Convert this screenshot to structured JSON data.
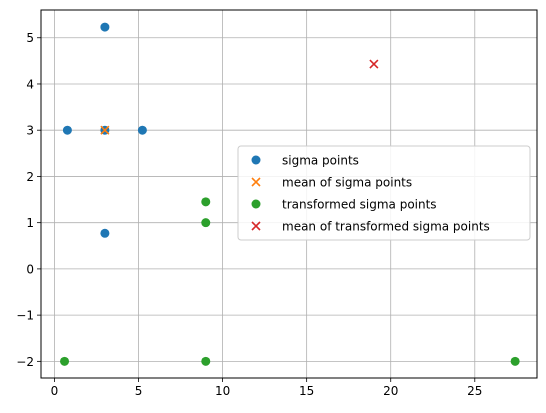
{
  "chart_data": {
    "type": "scatter",
    "xlim": [
      -0.8,
      28.7
    ],
    "ylim": [
      -2.36,
      5.6
    ],
    "xticks": [
      0,
      5,
      10,
      15,
      20,
      25
    ],
    "yticks": [
      -2,
      -1,
      0,
      1,
      2,
      3,
      4,
      5
    ],
    "xtick_labels": [
      "0",
      "5",
      "10",
      "15",
      "20",
      "25"
    ],
    "ytick_labels": [
      "−2",
      "−1",
      "0",
      "1",
      "2",
      "3",
      "4",
      "5"
    ],
    "grid": true,
    "legend_position": "center-right",
    "series": [
      {
        "name": "sigma points",
        "marker": "circle",
        "color": "#1f77b4",
        "points": [
          [
            3.0,
            3.0
          ],
          [
            0.77,
            3.0
          ],
          [
            5.23,
            3.0
          ],
          [
            3.0,
            0.77
          ],
          [
            3.0,
            5.23
          ]
        ]
      },
      {
        "name": "mean of sigma points",
        "marker": "x",
        "color": "#ff7f0e",
        "points": [
          [
            3.0,
            3.0
          ]
        ]
      },
      {
        "name": "transformed sigma points",
        "marker": "circle",
        "color": "#2ca02c",
        "points": [
          [
            9.0,
            1.0
          ],
          [
            0.6,
            -2.0
          ],
          [
            9.0,
            -2.0
          ],
          [
            9.0,
            1.45
          ],
          [
            27.4,
            -2.0
          ]
        ]
      },
      {
        "name": "mean of transformed sigma points",
        "marker": "x",
        "color": "#d62728",
        "points": [
          [
            19.0,
            4.43
          ]
        ]
      }
    ]
  }
}
